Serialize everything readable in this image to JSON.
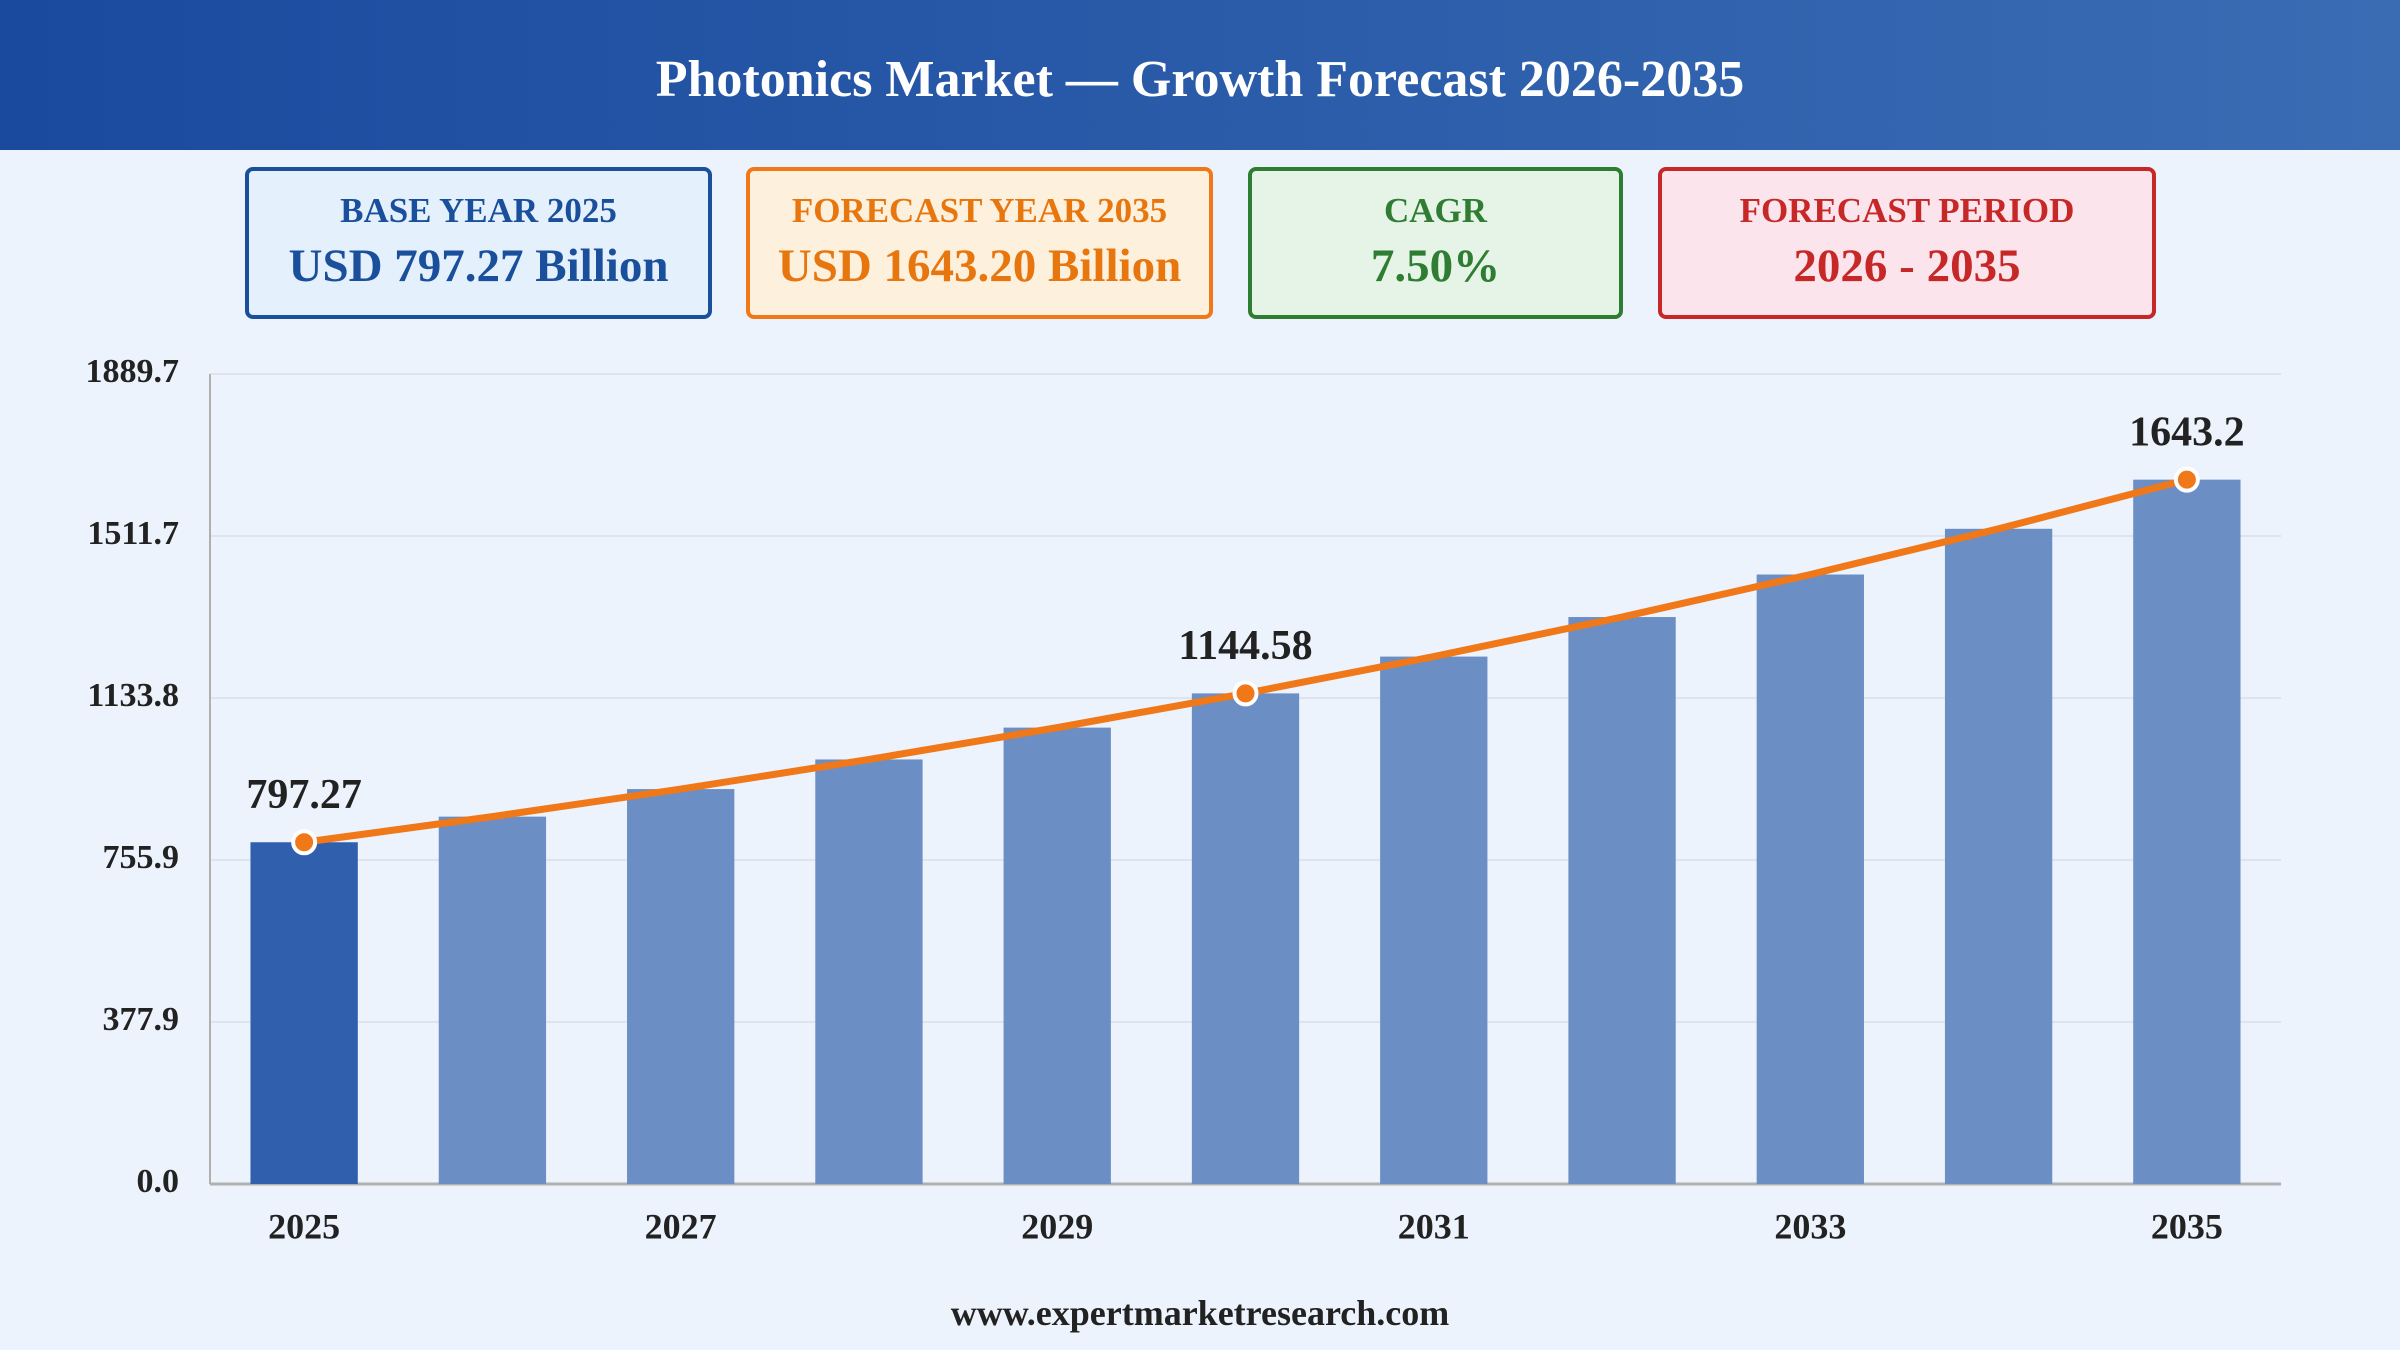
{
  "header": {
    "title": "Photonics Market — Growth Forecast 2026-2035"
  },
  "cards": [
    {
      "label": "BASE YEAR 2025",
      "value": "USD 797.27 Billion"
    },
    {
      "label": "FORECAST YEAR 2035",
      "value": "USD 1643.20 Billion"
    },
    {
      "label": "CAGR",
      "value": "7.50%"
    },
    {
      "label": "FORECAST PERIOD",
      "value": "2026 - 2035"
    }
  ],
  "chart_data": {
    "type": "bar",
    "categories": [
      "2025",
      null,
      "2027",
      null,
      "2029",
      null,
      "2031",
      null,
      "2033",
      null,
      "2035"
    ],
    "values": [
      797.27,
      857.07,
      921.35,
      990.45,
      1064.73,
      1144.58,
      1230.43,
      1322.71,
      1421.91,
      1528.55,
      1643.2
    ],
    "value_labels": [
      "797.27",
      null,
      null,
      null,
      null,
      "1144.58",
      null,
      null,
      null,
      null,
      "1643.2"
    ],
    "color": "#6b8fc4",
    "highlight_color": "#2f5fad",
    "line_color": "#f07818",
    "ylim": [
      0,
      1889.7
    ],
    "yticks": [
      {
        "value": 0,
        "label": "0.0"
      },
      377.9,
      755.9,
      1133.8,
      1511.7,
      1889.7
    ],
    "grid": true
  },
  "footer": {
    "text": "www.expertmarketresearch.com"
  }
}
